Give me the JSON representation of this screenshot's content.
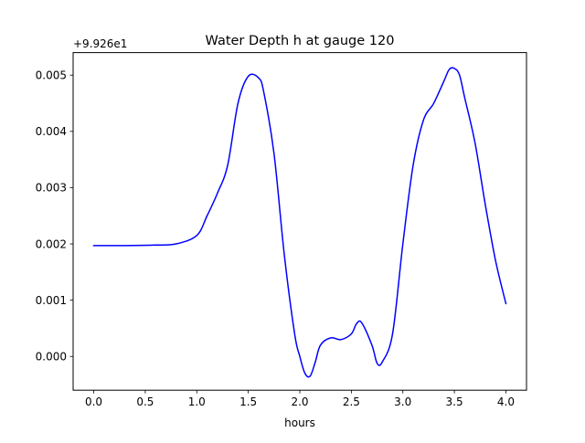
{
  "chart_data": {
    "type": "line",
    "title": "Water Depth h at gauge 120",
    "xlabel": "hours",
    "ylabel": "",
    "offset_label": "+9.926e1",
    "xlim": [
      -0.2,
      4.2
    ],
    "ylim": [
      -0.0006,
      0.0054
    ],
    "xticks": [
      0.0,
      0.5,
      1.0,
      1.5,
      2.0,
      2.5,
      3.0,
      3.5,
      4.0
    ],
    "xtick_labels": [
      "0.0",
      "0.5",
      "1.0",
      "1.5",
      "2.0",
      "2.5",
      "3.0",
      "3.5",
      "4.0"
    ],
    "yticks": [
      0.0,
      0.001,
      0.002,
      0.003,
      0.004,
      0.005
    ],
    "ytick_labels": [
      "0.000",
      "0.001",
      "0.002",
      "0.003",
      "0.004",
      "0.005"
    ],
    "grid": false,
    "series": [
      {
        "color": "#0000ff",
        "x": [
          0.0,
          0.3,
          0.6,
          0.8,
          1.0,
          1.1,
          1.2,
          1.3,
          1.4,
          1.5,
          1.6,
          1.65,
          1.75,
          1.85,
          1.95,
          2.0,
          2.05,
          2.1,
          2.15,
          2.2,
          2.3,
          2.4,
          2.5,
          2.55,
          2.6,
          2.7,
          2.75,
          2.8,
          2.9,
          3.0,
          3.1,
          3.2,
          3.3,
          3.4,
          3.45,
          3.5,
          3.55,
          3.6,
          3.7,
          3.8,
          3.9,
          4.0
        ],
        "y": [
          0.00197,
          0.00197,
          0.00198,
          0.002,
          0.00215,
          0.0025,
          0.0029,
          0.0034,
          0.0045,
          0.00498,
          0.00495,
          0.0047,
          0.0036,
          0.0018,
          0.0004,
          0.0,
          -0.0003,
          -0.00035,
          -0.0001,
          0.0002,
          0.00033,
          0.0003,
          0.0004,
          0.00058,
          0.0006,
          0.0002,
          -0.00012,
          -0.0001,
          0.0004,
          0.002,
          0.0034,
          0.0042,
          0.0045,
          0.0049,
          0.0051,
          0.00512,
          0.005,
          0.0046,
          0.0038,
          0.0027,
          0.0017,
          0.00094
        ]
      }
    ]
  }
}
